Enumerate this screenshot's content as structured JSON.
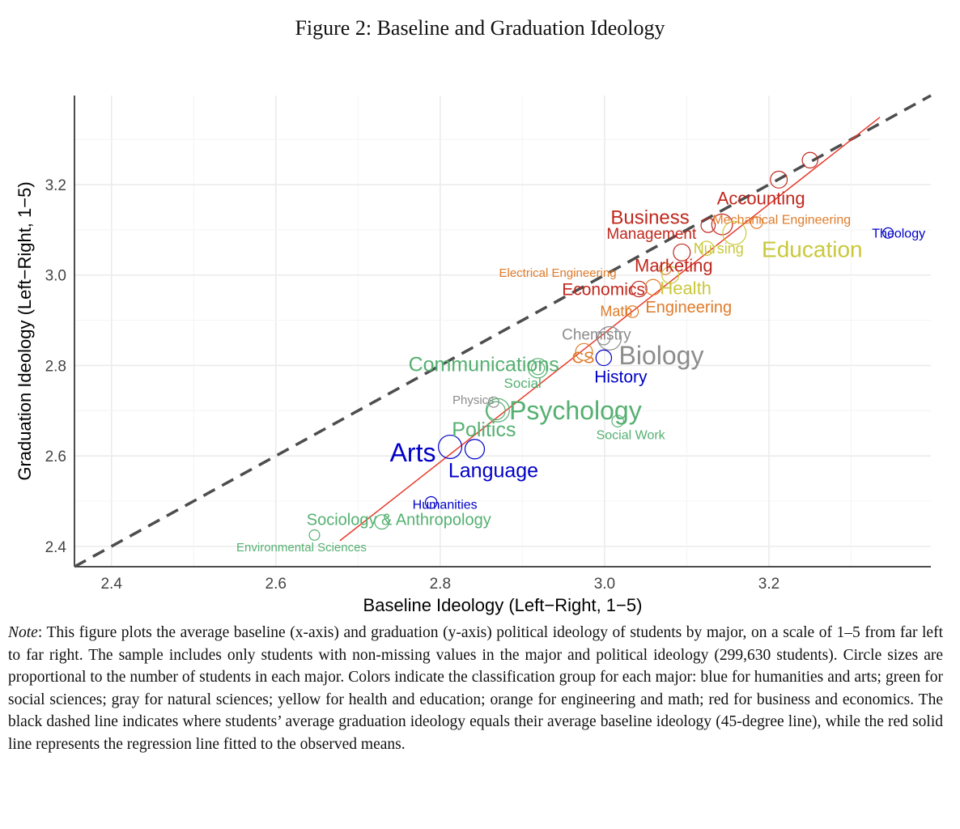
{
  "figure_title": "Figure 2: Baseline and Graduation Ideology",
  "note": {
    "lead": "Note",
    "text": ": This figure plots the average baseline (x-axis) and graduation (y-axis) political ideology of students by major, on a scale of 1–5 from far left to far right. The sample includes only students with non-missing values in the major and political ideology (299,630 students). Circle sizes are proportional to the number of students in each major. Colors indicate the classification group for each major: blue for humanities and arts; green for social sciences; gray for natural sciences; yellow for health and education; orange for engineering and math; red for business and economics. The black dashed line indicates where students’ average graduation ideology equals their average baseline ideology (45-degree line), while the red solid line represents the regression line fitted to the observed means."
  },
  "chart_data": {
    "type": "scatter",
    "xlabel": "Baseline Ideology (Left−Right, 1−5)",
    "ylabel": "Graduation Ideology (Left−Right, 1−5)",
    "xlim": [
      2.355,
      3.397
    ],
    "ylim": [
      2.355,
      3.397
    ],
    "xticks": [
      "2.4",
      "2.6",
      "2.8",
      "3.0",
      "3.2"
    ],
    "yticks": [
      "2.4",
      "2.6",
      "2.8",
      "3.0",
      "3.2"
    ],
    "grid": true,
    "colors": {
      "business": "#c0281e",
      "engineering": "#e07b2a",
      "health": "#c9c83c",
      "natural": "#8c8c8c",
      "social": "#55b071",
      "humanities": "#0000c8"
    },
    "reference_line": {
      "type": "45-degree",
      "style": "dashed",
      "color": "#4d4d4d"
    },
    "regression_line": {
      "x": [
        2.678,
        3.335
      ],
      "y": [
        2.4125,
        3.349
      ],
      "color": "#e8392a"
    },
    "points": [
      {
        "label": "",
        "group": "business",
        "x": 3.25,
        "y": 3.254,
        "size": 1.2
      },
      {
        "label": "Accounting",
        "group": "business",
        "x": 3.212,
        "y": 3.211,
        "size": 1.3
      },
      {
        "label": "Business",
        "group": "business",
        "x": 3.143,
        "y": 3.112,
        "size": 1.6
      },
      {
        "label": "Management",
        "group": "business",
        "x": 3.126,
        "y": 3.11,
        "size": 1.1
      },
      {
        "label": "Mechanical Engineering",
        "group": "engineering",
        "x": 3.185,
        "y": 3.116,
        "size": 0.9
      },
      {
        "label": "Theology",
        "group": "humanities",
        "x": 3.345,
        "y": 3.093,
        "size": 0.8
      },
      {
        "label": "Nursing",
        "group": "health",
        "x": 3.124,
        "y": 3.059,
        "size": 1.1
      },
      {
        "label": "Education",
        "group": "health",
        "x": 3.158,
        "y": 3.093,
        "size": 1.8
      },
      {
        "label": "Marketing",
        "group": "business",
        "x": 3.094,
        "y": 3.05,
        "size": 1.3
      },
      {
        "label": "Electrical Engineering",
        "group": "engineering",
        "x": 3.074,
        "y": 3.014,
        "size": 0.9
      },
      {
        "label": "Economics",
        "group": "business",
        "x": 3.042,
        "y": 2.969,
        "size": 1.2
      },
      {
        "label": "Health",
        "group": "health",
        "x": 3.08,
        "y": 3.0,
        "size": 1.3
      },
      {
        "label": "Math",
        "group": "engineering",
        "x": 3.034,
        "y": 2.919,
        "size": 0.9
      },
      {
        "label": "Engineering",
        "group": "engineering",
        "x": 3.059,
        "y": 2.973,
        "size": 1.2
      },
      {
        "label": "Chemistry",
        "group": "natural",
        "x": 2.999,
        "y": 2.86,
        "size": 1.0
      },
      {
        "label": "Biology",
        "group": "natural",
        "x": 3.006,
        "y": 2.86,
        "size": 1.8
      },
      {
        "label": "CS",
        "group": "engineering",
        "x": 2.975,
        "y": 2.83,
        "size": 1.3
      },
      {
        "label": "History",
        "group": "humanities",
        "x": 2.999,
        "y": 2.817,
        "size": 1.2
      },
      {
        "label": "Communications",
        "group": "social",
        "x": 2.919,
        "y": 2.794,
        "size": 1.5
      },
      {
        "label": "Social",
        "group": "social",
        "x": 2.919,
        "y": 2.794,
        "size": 1.0
      },
      {
        "label": "Physics",
        "group": "natural",
        "x": 2.865,
        "y": 2.719,
        "size": 0.8
      },
      {
        "label": "Psychology",
        "group": "social",
        "x": 2.87,
        "y": 2.701,
        "size": 1.8
      },
      {
        "label": "Social Work",
        "group": "social",
        "x": 3.016,
        "y": 2.677,
        "size": 0.9
      },
      {
        "label": "Politics",
        "group": "social",
        "x": 2.868,
        "y": 2.7,
        "size": 1.4
      },
      {
        "label": "Arts",
        "group": "humanities",
        "x": 2.812,
        "y": 2.62,
        "size": 1.8
      },
      {
        "label": "Language",
        "group": "humanities",
        "x": 2.842,
        "y": 2.615,
        "size": 1.5
      },
      {
        "label": "Humanities",
        "group": "humanities",
        "x": 2.789,
        "y": 2.497,
        "size": 0.9
      },
      {
        "label": "Sociology & Anthropology",
        "group": "social",
        "x": 2.729,
        "y": 2.454,
        "size": 1.1
      },
      {
        "label": "Environmental Sciences",
        "group": "social",
        "x": 2.647,
        "y": 2.425,
        "size": 0.8
      }
    ]
  }
}
